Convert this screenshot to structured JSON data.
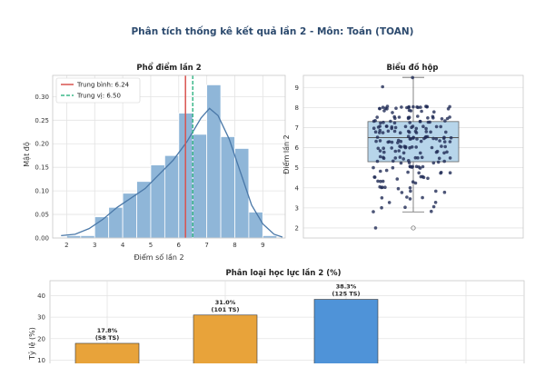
{
  "figure": {
    "title": "Phân tích thống kê kết quả lần 2 - Môn: Toán (TOAN)"
  },
  "colors": {
    "title": "#2c4a6e",
    "hist_bar": "#8fb6d8",
    "hist_edge": "#ffffff",
    "kde": "#4a78a8",
    "mean_line": "#d9534f",
    "median_line": "#3cb88a",
    "box_fill": "#b7d5ea",
    "points": "#1f2a55",
    "grid": "#e3e3e3",
    "frame": "#c8c8c8",
    "bar_orange": "#e8a33a",
    "bar_blue": "#4f93d8"
  },
  "chart_data": [
    {
      "type": "bar",
      "title": "Phổ điểm lần 2",
      "xlabel": "Điểm số lần 2",
      "ylabel": "Mật độ",
      "bins": [
        {
          "x0": 2.0,
          "x1": 2.5,
          "value": 0.005
        },
        {
          "x0": 2.5,
          "x1": 3.0,
          "value": 0.005
        },
        {
          "x0": 3.0,
          "x1": 3.5,
          "value": 0.045
        },
        {
          "x0": 3.5,
          "x1": 4.0,
          "value": 0.065
        },
        {
          "x0": 4.0,
          "x1": 4.5,
          "value": 0.095
        },
        {
          "x0": 4.5,
          "x1": 5.0,
          "value": 0.12
        },
        {
          "x0": 5.0,
          "x1": 5.5,
          "value": 0.155
        },
        {
          "x0": 5.5,
          "x1": 6.0,
          "value": 0.175
        },
        {
          "x0": 6.0,
          "x1": 6.5,
          "value": 0.265
        },
        {
          "x0": 6.5,
          "x1": 7.0,
          "value": 0.22
        },
        {
          "x0": 7.0,
          "x1": 7.5,
          "value": 0.325
        },
        {
          "x0": 7.5,
          "x1": 8.0,
          "value": 0.215
        },
        {
          "x0": 8.0,
          "x1": 8.5,
          "value": 0.19
        },
        {
          "x0": 8.5,
          "x1": 9.0,
          "value": 0.055
        },
        {
          "x0": 9.0,
          "x1": 9.5,
          "value": 0.005
        }
      ],
      "kde": [
        [
          1.8,
          0.005
        ],
        [
          2.3,
          0.008
        ],
        [
          2.8,
          0.02
        ],
        [
          3.3,
          0.04
        ],
        [
          3.8,
          0.065
        ],
        [
          4.3,
          0.085
        ],
        [
          4.8,
          0.105
        ],
        [
          5.3,
          0.135
        ],
        [
          5.8,
          0.165
        ],
        [
          6.3,
          0.205
        ],
        [
          6.8,
          0.255
        ],
        [
          7.1,
          0.275
        ],
        [
          7.4,
          0.26
        ],
        [
          7.8,
          0.21
        ],
        [
          8.2,
          0.14
        ],
        [
          8.6,
          0.07
        ],
        [
          9.0,
          0.03
        ],
        [
          9.4,
          0.008
        ],
        [
          9.7,
          0.002
        ]
      ],
      "mean": 6.24,
      "median": 6.5,
      "legend": [
        "Trung bình: 6.24",
        "Trung vị: 6.50"
      ],
      "legend_position": "top-left",
      "xlim": [
        1.5,
        9.8
      ],
      "ylim": [
        0,
        0.345
      ],
      "xticks": [
        2,
        3,
        4,
        5,
        6,
        7,
        8,
        9
      ],
      "yticks": [
        0.0,
        0.05,
        0.1,
        0.15,
        0.2,
        0.25,
        0.3
      ],
      "ytick_labels": [
        "0.00",
        "0.05",
        "0.10",
        "0.15",
        "0.20",
        "0.25",
        "0.30"
      ]
    },
    {
      "type": "scatter",
      "subtype": "box-with-strip",
      "title": "Biểu đồ hộp",
      "ylabel": "Điểm lần 2",
      "ylim": [
        1.5,
        9.6
      ],
      "yticks": [
        2,
        3,
        4,
        5,
        6,
        7,
        8,
        9
      ],
      "box": {
        "min": 2.8,
        "q1": 5.3,
        "median": 6.5,
        "q3": 7.3,
        "max": 9.5
      },
      "outliers": [
        2.0
      ],
      "points": [
        9.5,
        9.0,
        8.0,
        8.0,
        8.0,
        8.0,
        8.0,
        8.0,
        8.0,
        8.0,
        8.0,
        8.0,
        8.0,
        8.0,
        8.0,
        8.0,
        8.0,
        8.0,
        8.0,
        8.0,
        8.0,
        8.0,
        7.8,
        7.8,
        7.8,
        7.8,
        7.8,
        7.8,
        7.5,
        7.5,
        7.5,
        7.5,
        7.5,
        7.5,
        7.5,
        7.5,
        7.5,
        7.5,
        7.5,
        7.5,
        7.5,
        7.5,
        7.3,
        7.3,
        7.3,
        7.3,
        7.3,
        7.3,
        7.3,
        7.3,
        7.3,
        7.3,
        7.3,
        7.3,
        7.0,
        7.0,
        7.0,
        7.0,
        7.0,
        7.0,
        7.0,
        7.0,
        7.0,
        7.0,
        7.0,
        7.0,
        7.0,
        7.0,
        7.0,
        7.0,
        6.8,
        6.8,
        6.8,
        6.8,
        6.8,
        6.8,
        6.8,
        6.8,
        6.8,
        6.8,
        6.8,
        6.8,
        6.8,
        6.8,
        6.5,
        6.5,
        6.5,
        6.5,
        6.5,
        6.5,
        6.5,
        6.5,
        6.5,
        6.5,
        6.5,
        6.5,
        6.5,
        6.5,
        6.5,
        6.5,
        6.3,
        6.3,
        6.3,
        6.3,
        6.3,
        6.3,
        6.3,
        6.3,
        6.3,
        6.3,
        6.3,
        6.3,
        6.0,
        6.0,
        6.0,
        6.0,
        6.0,
        6.0,
        6.0,
        6.0,
        6.0,
        6.0,
        6.0,
        6.0,
        6.0,
        6.0,
        5.8,
        5.8,
        5.8,
        5.8,
        5.8,
        5.8,
        5.8,
        5.8,
        5.8,
        5.8,
        5.5,
        5.5,
        5.5,
        5.5,
        5.5,
        5.5,
        5.5,
        5.5,
        5.5,
        5.5,
        5.5,
        5.3,
        5.3,
        5.3,
        5.3,
        5.3,
        5.3,
        5.3,
        5.3,
        5.0,
        5.0,
        5.0,
        5.0,
        5.0,
        5.0,
        5.0,
        5.0,
        5.0,
        5.0,
        4.8,
        4.8,
        4.8,
        4.8,
        4.8,
        4.8,
        4.8,
        4.5,
        4.5,
        4.5,
        4.5,
        4.5,
        4.5,
        4.5,
        4.3,
        4.3,
        4.3,
        4.3,
        4.3,
        4.0,
        4.0,
        4.0,
        4.0,
        4.0,
        4.0,
        3.8,
        3.8,
        3.8,
        3.8,
        3.5,
        3.5,
        3.5,
        3.5,
        3.3,
        3.3,
        3.0,
        3.0,
        3.0,
        2.8,
        2.8,
        2.0
      ]
    },
    {
      "type": "bar",
      "title": "Phân loại học lực lần 2 (%)",
      "ylabel": "Tỷ lệ (%)",
      "ylim": [
        0,
        47
      ],
      "yticks": [
        0,
        10,
        20,
        30,
        40
      ],
      "bars": [
        {
          "value": 17.8,
          "label": "17.8%",
          "sub": "(58 TS)",
          "color": "#e8a33a"
        },
        {
          "value": 31.0,
          "label": "31.0%",
          "sub": "(101 TS)",
          "color": "#e8a33a"
        },
        {
          "value": 38.3,
          "label": "38.3%",
          "sub": "(125 TS)",
          "color": "#4f93d8"
        }
      ],
      "grid": true
    }
  ]
}
